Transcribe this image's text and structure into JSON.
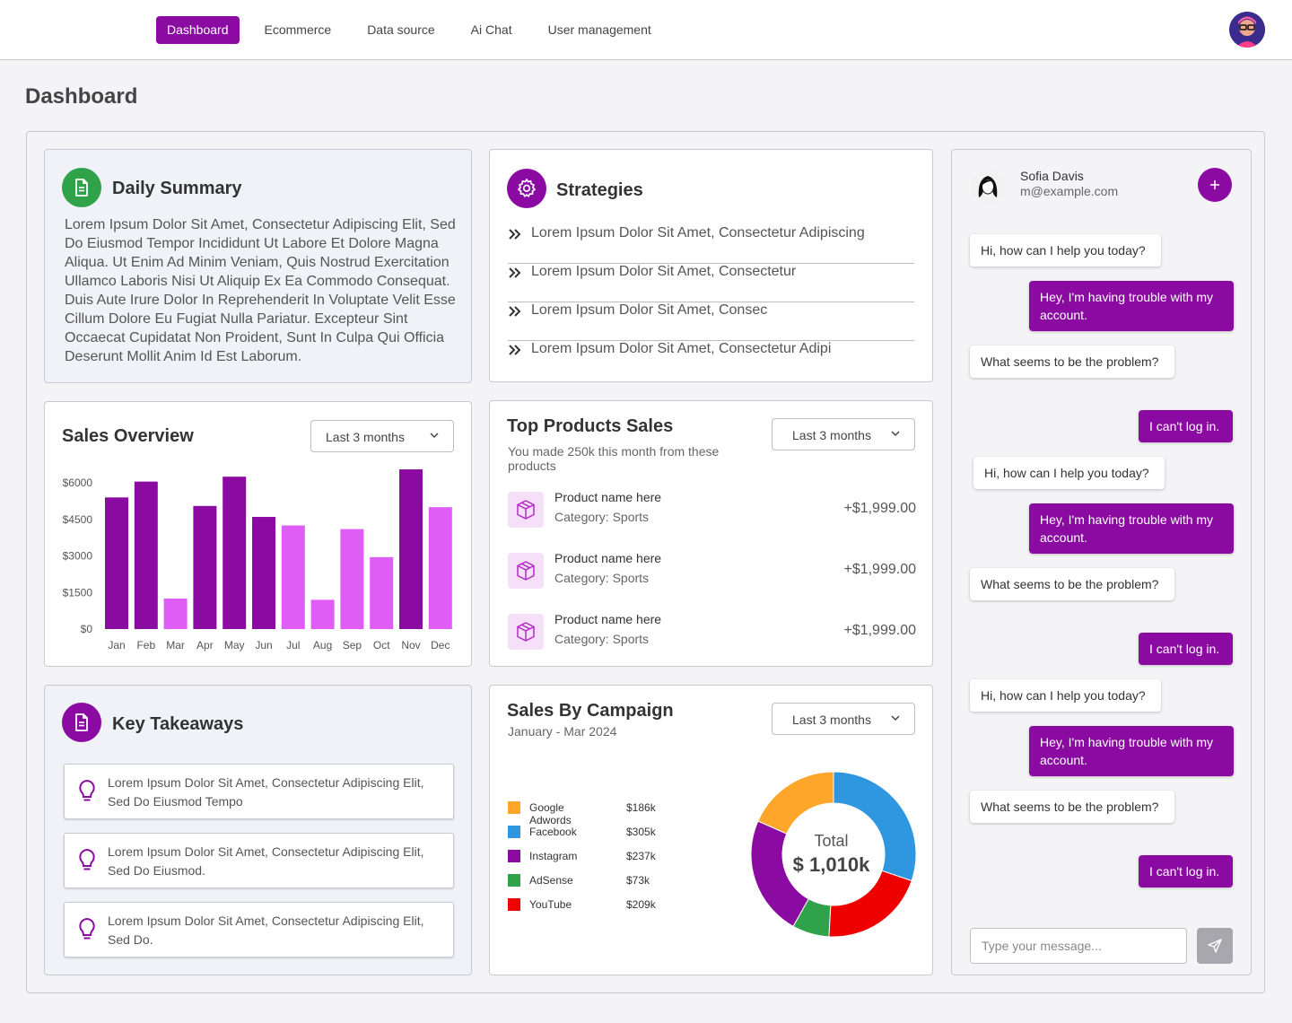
{
  "nav": {
    "items": [
      {
        "label": "Dashboard",
        "active": true
      },
      {
        "label": "Ecommerce",
        "active": false
      },
      {
        "label": "Data source",
        "active": false
      },
      {
        "label": "Ai Chat",
        "active": false
      },
      {
        "label": "User management",
        "active": false
      }
    ]
  },
  "page": {
    "title": "Dashboard"
  },
  "daily_summary": {
    "title": "Daily Summary",
    "text": "Lorem Ipsum Dolor Sit Amet, Consectetur Adipiscing Elit, Sed Do Eiusmod Tempor Incididunt Ut Labore Et Dolore Magna Aliqua. Ut Enim Ad Minim Veniam, Quis Nostrud Exercitation Ullamco Laboris Nisi Ut Aliquip Ex Ea Commodo Consequat. Duis Aute Irure Dolor In Reprehenderit In Voluptate Velit Esse Cillum Dolore Eu Fugiat Nulla Pariatur. Excepteur Sint Occaecat Cupidatat Non Proident, Sunt In Culpa Qui Officia Deserunt Mollit Anim Id Est Laborum."
  },
  "strategies": {
    "title": "Strategies",
    "items": [
      "Lorem Ipsum Dolor Sit Amet, Consectetur Adipiscing",
      "Lorem Ipsum Dolor Sit Amet, Consectetur",
      "Lorem Ipsum Dolor Sit Amet, Consec",
      "Lorem Ipsum Dolor Sit Amet, Consectetur Adipi"
    ]
  },
  "sales_overview": {
    "title": "Sales Overview",
    "range_label": "Last 3 months"
  },
  "chart_data": {
    "type": "bar",
    "categories": [
      "Jan",
      "Feb",
      "Mar",
      "Apr",
      "May",
      "Jun",
      "Jul",
      "Aug",
      "Sep",
      "Oct",
      "Nov",
      "Dec"
    ],
    "values": [
      5400,
      6050,
      1250,
      5050,
      6250,
      4600,
      4250,
      1200,
      4100,
      2950,
      6550,
      5000
    ],
    "bar_colors": [
      "#8b0aa1",
      "#8b0aa1",
      "#df5cf6",
      "#8b0aa1",
      "#8b0aa1",
      "#8b0aa1",
      "#df5cf6",
      "#df5cf6",
      "#df5cf6",
      "#df5cf6",
      "#8b0aa1",
      "#df5cf6"
    ],
    "yticks": [
      0,
      1500,
      3000,
      4500,
      6000
    ],
    "ytick_labels": [
      "$0",
      "$1500",
      "$3000",
      "$4500",
      "$6000"
    ],
    "ylim": [
      0,
      6000
    ],
    "grid": false
  },
  "top_products": {
    "title": "Top Products Sales",
    "subtitle": "You made 250k this month from these products",
    "range_label": "Last 3 months",
    "items": [
      {
        "name": "Product name here",
        "category": "Category: Sports",
        "price": "+$1,999.00"
      },
      {
        "name": "Product name here",
        "category": "Category: Sports",
        "price": "+$1,999.00"
      },
      {
        "name": "Product name here",
        "category": "Category: Sports",
        "price": "+$1,999.00"
      }
    ]
  },
  "key_takeaways": {
    "title": "Key Takeaways",
    "items": [
      "Lorem Ipsum Dolor Sit Amet, Consectetur Adipiscing Elit, Sed Do Eiusmod Tempo",
      "Lorem Ipsum Dolor Sit Amet, Consectetur Adipiscing Elit, Sed Do Eiusmod.",
      "Lorem Ipsum Dolor Sit Amet, Consectetur Adipiscing Elit, Sed Do."
    ]
  },
  "campaign": {
    "title": "Sales By Campaign",
    "subtitle": "January - Mar 2024",
    "range_label": "Last 3 months",
    "total_label": "Total",
    "total_value": "$ 1,010k",
    "slices": [
      {
        "name": "Google Adwords",
        "label": "$186k",
        "value": 186,
        "color": "#ffa62b"
      },
      {
        "name": "Facebook",
        "label": "$305k",
        "value": 305,
        "color": "#2f96e0"
      },
      {
        "name": "Instagram",
        "label": "$237k",
        "value": 237,
        "color": "#8b0aa1"
      },
      {
        "name": "AdSense",
        "label": "$73k",
        "value": 73,
        "color": "#2fa24a"
      },
      {
        "name": "YouTube",
        "label": "$209k",
        "value": 209,
        "color": "#ef0000"
      }
    ],
    "ring_order": [
      "Facebook",
      "YouTube",
      "AdSense",
      "Instagram",
      "Google Adwords"
    ]
  },
  "chat": {
    "user_name": "Sofia Davis",
    "user_email": "m@example.com",
    "input_placeholder": "Type your message...",
    "messages": [
      {
        "from": "in",
        "text": "Hi, how can I help you today?"
      },
      {
        "from": "out",
        "text": "Hey, I'm having trouble with my account."
      },
      {
        "from": "in",
        "text": "What seems to be the problem?"
      },
      {
        "from": "out",
        "text": "I can't log in."
      },
      {
        "from": "in",
        "text": "Hi, how can I help you today?"
      },
      {
        "from": "out",
        "text": "Hey, I'm having trouble with my account."
      },
      {
        "from": "in",
        "text": "What seems to be the problem?"
      },
      {
        "from": "out",
        "text": "I can't log in."
      },
      {
        "from": "in",
        "text": "Hi, how can I help you today?"
      },
      {
        "from": "out",
        "text": "Hey, I'm having trouble with my account."
      },
      {
        "from": "in",
        "text": "What seems to be the problem?"
      },
      {
        "from": "out",
        "text": "I can't log in."
      }
    ]
  }
}
